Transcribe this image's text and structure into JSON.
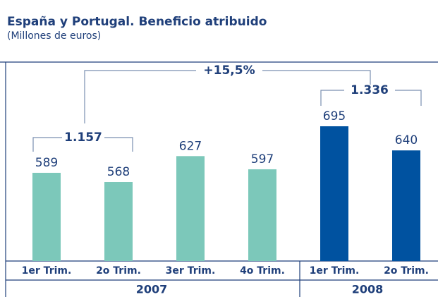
{
  "chart_data": {
    "type": "bar",
    "title": "España y Portugal. Beneficio atribuido",
    "subtitle": "(Millones de euros)",
    "categories": [
      "1er Trim.",
      "2o Trim.",
      "3er Trim.",
      "4o Trim.",
      "1er Trim.",
      "2o Trim."
    ],
    "groups": [
      {
        "name": "2007",
        "color": "#7cc8ba",
        "count": 4
      },
      {
        "name": "2008",
        "color": "#0052a0",
        "count": 2
      }
    ],
    "values": [
      589,
      568,
      627,
      597,
      695,
      640
    ],
    "ylim": [
      388,
      830
    ],
    "annotations": [
      "1.157",
      "1.336",
      "+15,5%"
    ]
  }
}
